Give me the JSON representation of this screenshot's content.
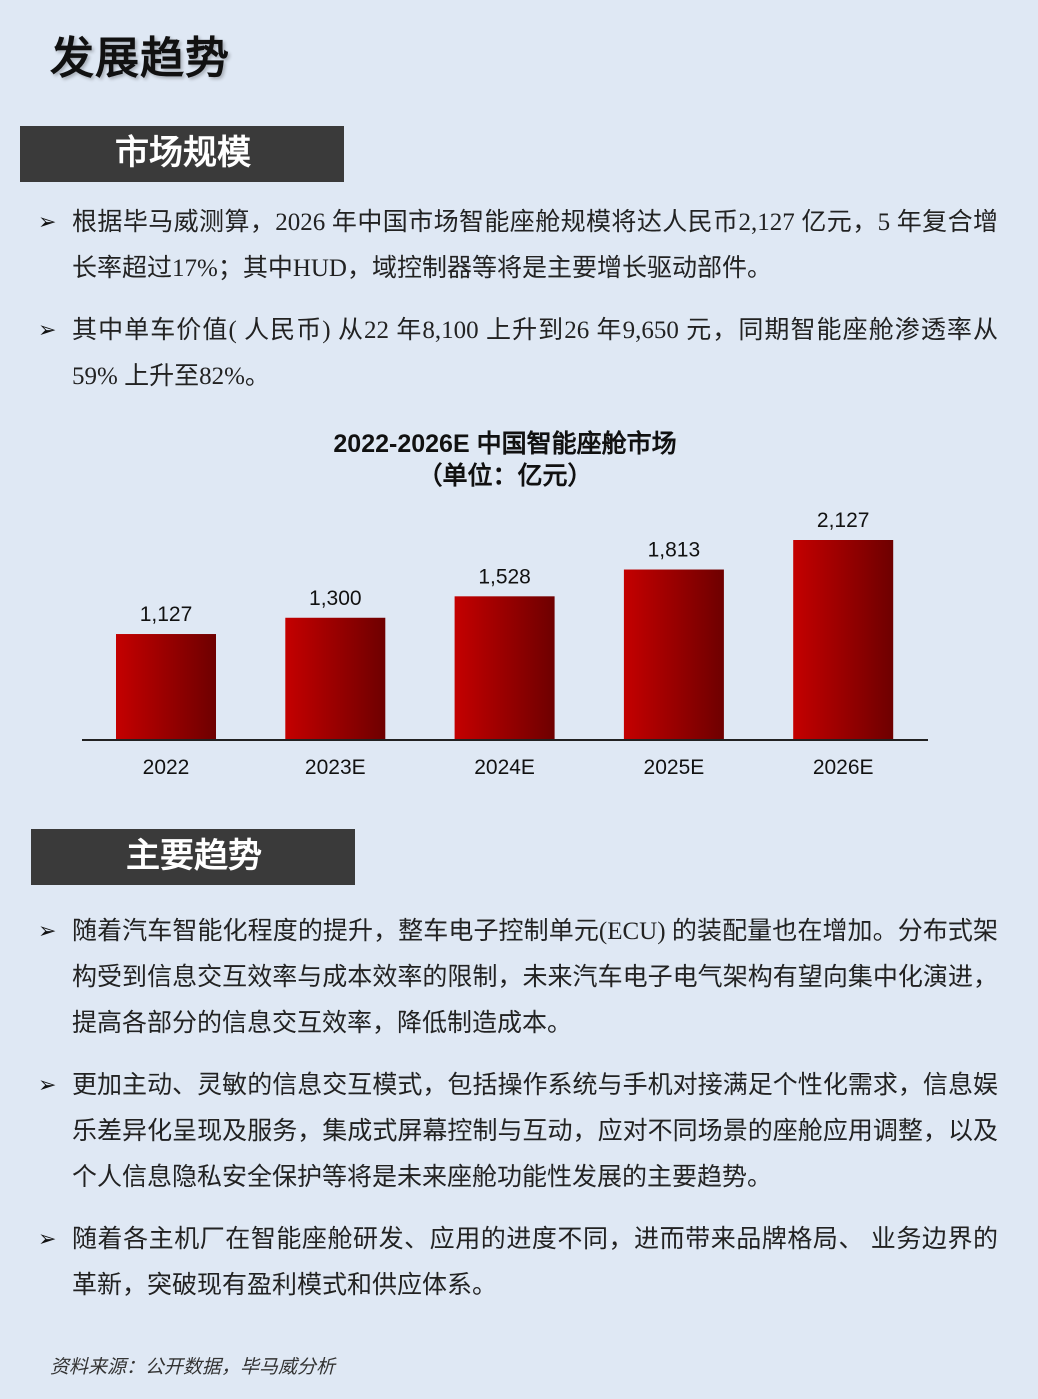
{
  "page": {
    "title": "发展趋势"
  },
  "market_section": {
    "header": "市场规模",
    "bullets": [
      "根据毕马威测算，2026 年中国市场智能座舱规模将达人民币2,127 亿元，5 年复合增长率超过17%；其中HUD，域控制器等将是主要增长驱动部件。",
      "其中单车价值( 人民币) 从22 年8,100 上升到26 年9,650 元，同期智能座舱渗透率从59% 上升至82%。"
    ]
  },
  "chart_data": {
    "type": "bar",
    "title": "2022-2026E 中国智能座舱市场",
    "subtitle": "（单位：亿元）",
    "categories": [
      "2022",
      "2023E",
      "2024E",
      "2025E",
      "2026E"
    ],
    "values": [
      1127,
      1300,
      1528,
      1813,
      2127
    ],
    "value_labels": [
      "1,127",
      "1,300",
      "1,528",
      "1,813",
      "2,127"
    ],
    "bar_color": "#c40000",
    "bar_color_dark": "#6e0000",
    "ylim": [
      0,
      2127
    ],
    "grid": false,
    "legend": "none"
  },
  "trends_section": {
    "header": "主要趋势",
    "bullets": [
      "随着汽车智能化程度的提升，整车电子控制单元(ECU) 的装配量也在增加。分布式架构受到信息交互效率与成本效率的限制，未来汽车电子电气架构有望向集中化演进，提高各部分的信息交互效率，降低制造成本。",
      "更加主动、灵敏的信息交互模式，包括操作系统与手机对接满足个性化需求，信息娱乐差异化呈现及服务，集成式屏幕控制与互动，应对不同场景的座舱应用调整，以及个人信息隐私安全保护等将是未来座舱功能性发展的主要趋势。",
      "随着各主机厂在智能座舱研发、应用的进度不同，进而带来品牌格局、 业务边界的革新，突破现有盈利模式和供应体系。"
    ]
  },
  "footer": {
    "source": "资料来源：公开数据，毕马威分析"
  },
  "colors": {
    "background": "#dfe8f4",
    "header_bg": "#3a3a3a"
  }
}
